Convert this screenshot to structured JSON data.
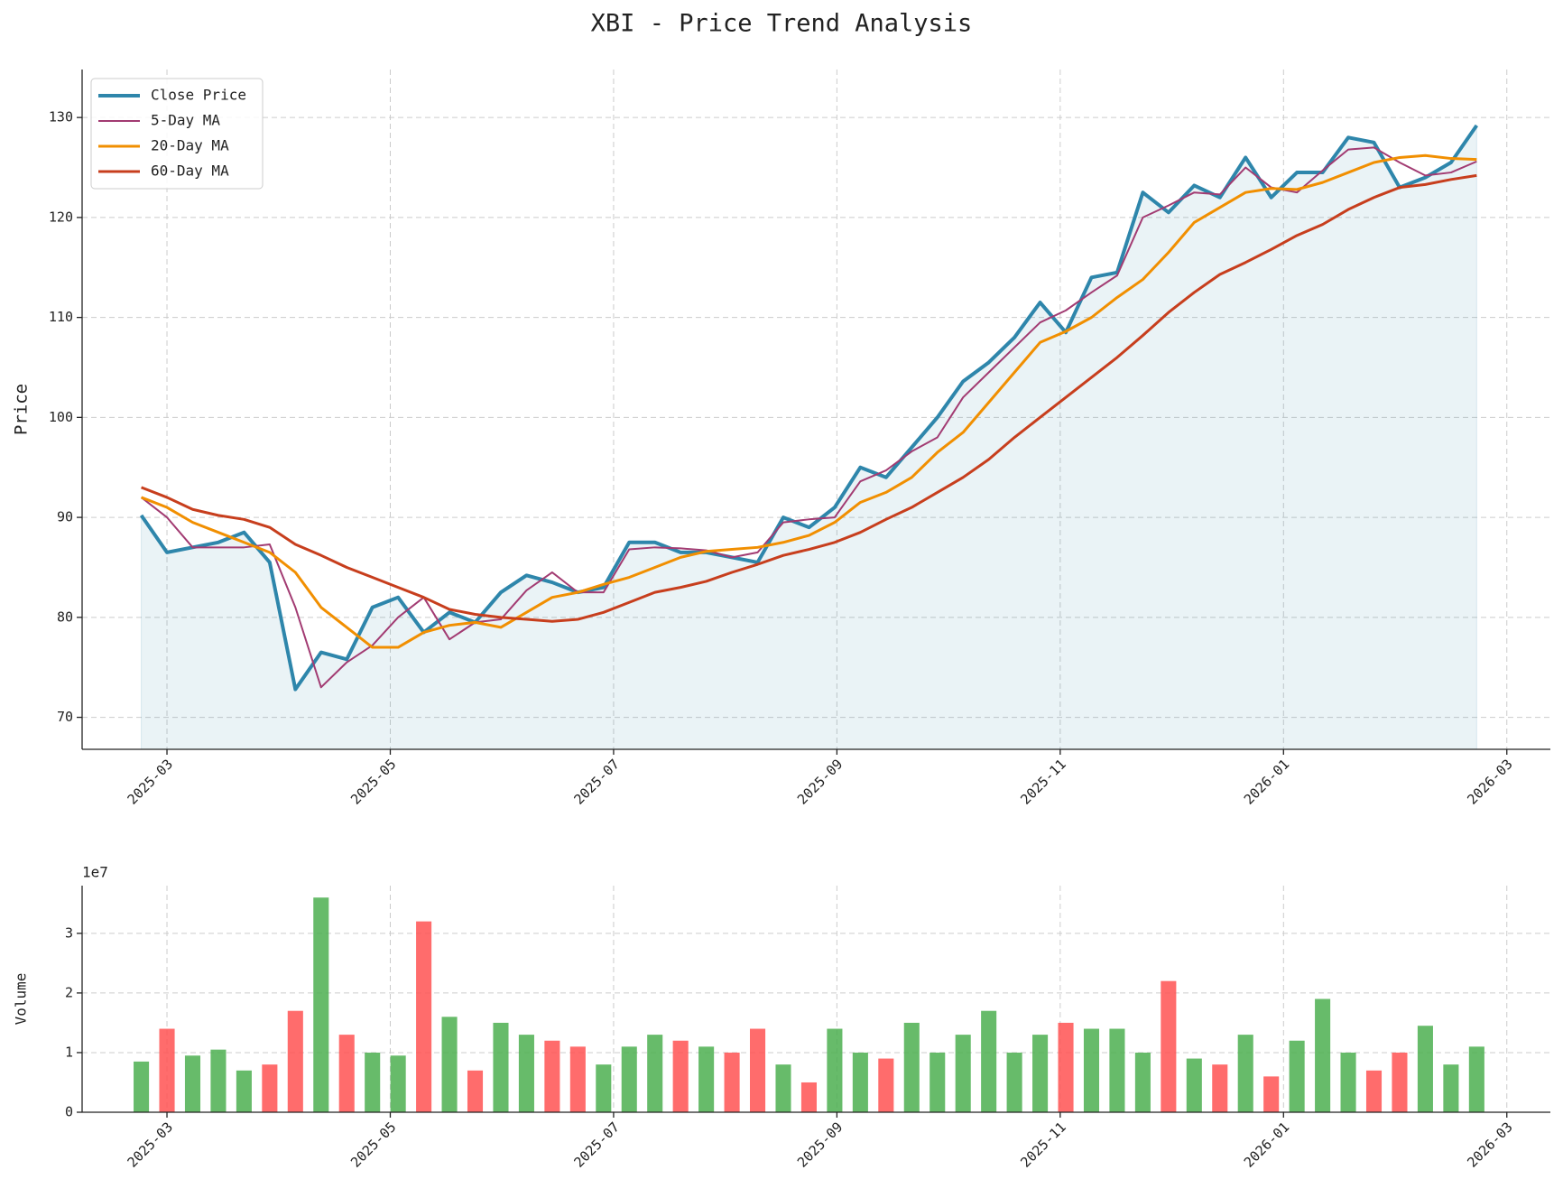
{
  "chart_data": [
    {
      "type": "line",
      "title": "XBI - Price Trend Analysis",
      "ylabel": "Price",
      "grid": true,
      "legend": "upper left",
      "fill_under": 0,
      "x": [
        1.77,
        2.0,
        2.23,
        2.46,
        2.69,
        2.92,
        3.15,
        3.38,
        3.61,
        3.84,
        4.07,
        4.3,
        4.53,
        4.76,
        4.99,
        5.22,
        5.45,
        5.68,
        5.91,
        6.14,
        6.37,
        6.6,
        6.83,
        7.06,
        7.29,
        7.52,
        7.75,
        7.98,
        8.21,
        8.44,
        8.67,
        8.9,
        9.13,
        9.36,
        9.59,
        9.82,
        10.05,
        10.28,
        10.51,
        10.74,
        10.97,
        11.2,
        11.43,
        11.66,
        11.89,
        12.12,
        12.35,
        12.58,
        12.81,
        13.04,
        13.27,
        13.5,
        13.73
      ],
      "series": [
        {
          "name": "Close Price",
          "color": "#2e86ab",
          "width": 4,
          "values": [
            90.2,
            86.5,
            87,
            87.5,
            88.5,
            85.5,
            72.8,
            76.5,
            75.8,
            81,
            82,
            78.5,
            80.5,
            79.5,
            82.5,
            84.2,
            83.5,
            82.5,
            83,
            87.5,
            87.5,
            86.5,
            86.5,
            86,
            85.5,
            90,
            89,
            91,
            95,
            94,
            97,
            100,
            103.6,
            105.5,
            108,
            111.5,
            108.5,
            114,
            114.5,
            122.5,
            120.5,
            123.2,
            122,
            126,
            122,
            124.5,
            124.5,
            128,
            127.5,
            123,
            124,
            125.5,
            129.2
          ]
        },
        {
          "name": "5-Day MA",
          "color": "#a23b72",
          "width": 2,
          "values": [
            92,
            90,
            87,
            87,
            87,
            87.3,
            81,
            73,
            75.5,
            77.2,
            80,
            82,
            77.8,
            79.5,
            79.8,
            82.7,
            84.5,
            82.5,
            82.5,
            86.8,
            87,
            86.9,
            86.7,
            86,
            86.5,
            89.5,
            89.8,
            90,
            93.6,
            94.7,
            96.6,
            98,
            102,
            104.5,
            107,
            109.5,
            110.7,
            112.5,
            114.2,
            120,
            121.2,
            122.5,
            122.3,
            125,
            123,
            122.5,
            124.7,
            126.8,
            127,
            125.5,
            124.2,
            124.5,
            125.6
          ]
        },
        {
          "name": "20-Day MA",
          "color": "#f18f01",
          "width": 3,
          "values": [
            92,
            91,
            89.5,
            88.5,
            87.5,
            86.5,
            84.5,
            81,
            79,
            77,
            77,
            78.5,
            79.2,
            79.5,
            79,
            80.5,
            82,
            82.5,
            83.3,
            84,
            85,
            86,
            86.6,
            86.8,
            87,
            87.5,
            88.2,
            89.5,
            91.5,
            92.5,
            94,
            96.5,
            98.5,
            101.5,
            104.5,
            107.5,
            108.6,
            110,
            112,
            113.8,
            116.5,
            119.5,
            121,
            122.5,
            122.9,
            122.8,
            123.5,
            124.5,
            125.5,
            126,
            126.2,
            125.9,
            125.8
          ]
        },
        {
          "name": "60-Day MA",
          "color": "#c73e1d",
          "width": 3,
          "values": [
            93,
            92,
            90.8,
            90.2,
            89.8,
            89,
            87.3,
            86.2,
            85,
            84,
            83,
            82,
            80.8,
            80.3,
            80,
            79.8,
            79.6,
            79.8,
            80.5,
            81.5,
            82.5,
            83,
            83.6,
            84.5,
            85.3,
            86.2,
            86.8,
            87.5,
            88.5,
            89.8,
            91,
            92.5,
            94,
            95.8,
            98,
            100,
            102,
            104,
            106,
            108.2,
            110.5,
            112.5,
            114.3,
            115.5,
            116.8,
            118.2,
            119.3,
            120.8,
            122,
            123,
            123.3,
            123.8,
            124.2
          ]
        }
      ],
      "xlim": [
        1.24,
        14.39
      ],
      "xticks": [
        {
          "value": 2,
          "label": "2025-03"
        },
        {
          "value": 4,
          "label": "2025-05"
        },
        {
          "value": 6,
          "label": "2025-07"
        },
        {
          "value": 8,
          "label": "2025-09"
        },
        {
          "value": 10,
          "label": "2025-11"
        },
        {
          "value": 12,
          "label": "2026-01"
        },
        {
          "value": 14,
          "label": "2026-03"
        }
      ],
      "ylim": [
        66.8,
        134.8
      ],
      "yticks": [
        70,
        80,
        90,
        100,
        110,
        120,
        130
      ]
    },
    {
      "type": "bar",
      "ylabel": "Volume",
      "offset_label": "1e7",
      "grid": true,
      "up_color": "#4caf50",
      "down_color": "#ff5252",
      "x": [
        1.77,
        2.0,
        2.23,
        2.46,
        2.69,
        2.92,
        3.15,
        3.38,
        3.61,
        3.84,
        4.07,
        4.3,
        4.53,
        4.76,
        4.99,
        5.22,
        5.45,
        5.68,
        5.91,
        6.14,
        6.37,
        6.6,
        6.83,
        7.06,
        7.29,
        7.52,
        7.75,
        7.98,
        8.21,
        8.44,
        8.67,
        8.9,
        9.13,
        9.36,
        9.59,
        9.82,
        10.05,
        10.28,
        10.51,
        10.74,
        10.97,
        11.2,
        11.43,
        11.66,
        11.89,
        12.12,
        12.35,
        12.58,
        12.81,
        13.04,
        13.27,
        13.5,
        13.73
      ],
      "values": [
        0.85,
        1.4,
        0.95,
        1.05,
        0.7,
        0.8,
        1.7,
        3.6,
        1.3,
        1.0,
        0.95,
        3.2,
        1.6,
        0.7,
        1.5,
        1.3,
        1.2,
        1.1,
        0.8,
        1.1,
        1.3,
        1.2,
        1.1,
        1.0,
        1.4,
        0.8,
        0.5,
        1.4,
        1.0,
        0.9,
        1.5,
        1.0,
        1.3,
        1.7,
        1.0,
        1.3,
        1.5,
        1.4,
        1.4,
        1.0,
        2.2,
        0.9,
        0.8,
        1.3,
        0.6,
        1.2,
        1.9,
        1.0,
        0.7,
        1.0,
        1.45,
        0.8,
        1.1
      ],
      "xlim": [
        1.24,
        14.39
      ],
      "xticks": [
        {
          "value": 2,
          "label": "2025-03"
        },
        {
          "value": 4,
          "label": "2025-05"
        },
        {
          "value": 6,
          "label": "2025-07"
        },
        {
          "value": 8,
          "label": "2025-09"
        },
        {
          "value": 10,
          "label": "2025-11"
        },
        {
          "value": 12,
          "label": "2026-01"
        },
        {
          "value": 14,
          "label": "2026-03"
        }
      ],
      "ylim": [
        0,
        3.8
      ],
      "yticks": [
        0,
        1,
        2,
        3
      ]
    }
  ]
}
